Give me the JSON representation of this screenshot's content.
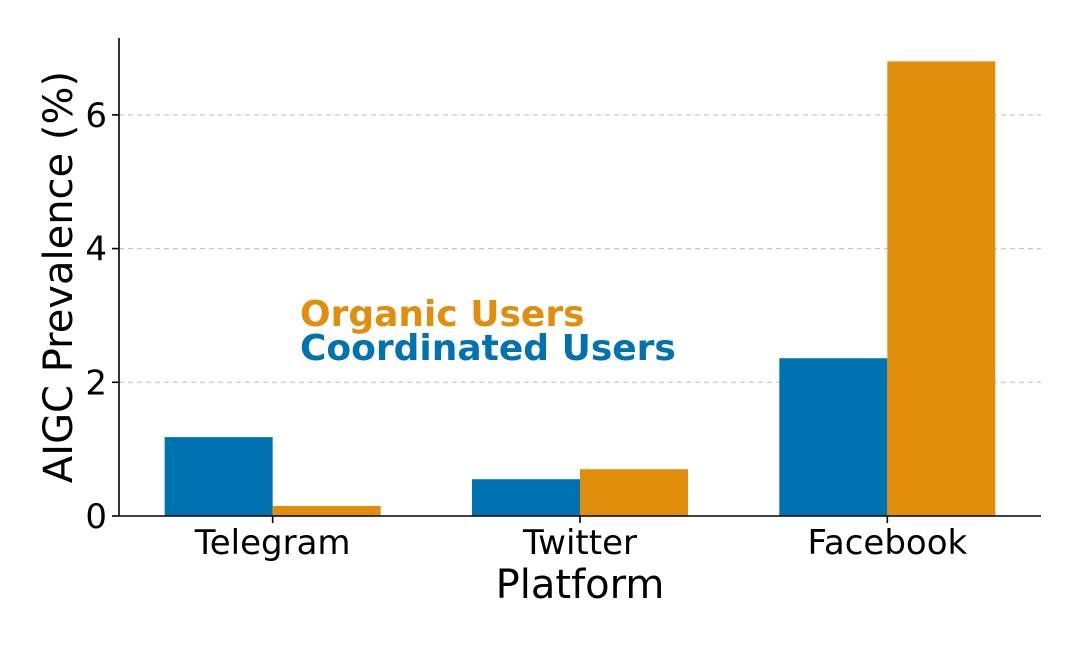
{
  "chart_data": {
    "type": "bar",
    "xlabel": "Platform",
    "ylabel": "AIGC Prevalence (%)",
    "categories": [
      "Telegram",
      "Twitter",
      "Facebook"
    ],
    "series": [
      {
        "name": "Coordinated Users",
        "color": "#0072B2",
        "values": [
          1.18,
          0.55,
          2.36
        ]
      },
      {
        "name": "Organic Users",
        "color": "#E08E0B",
        "values": [
          0.15,
          0.7,
          6.8
        ]
      }
    ],
    "ylim": [
      0,
      7.15
    ],
    "yticks": [
      0,
      2,
      4,
      6
    ],
    "grid": "horizontal dashed",
    "legend_placement": "center-left"
  }
}
